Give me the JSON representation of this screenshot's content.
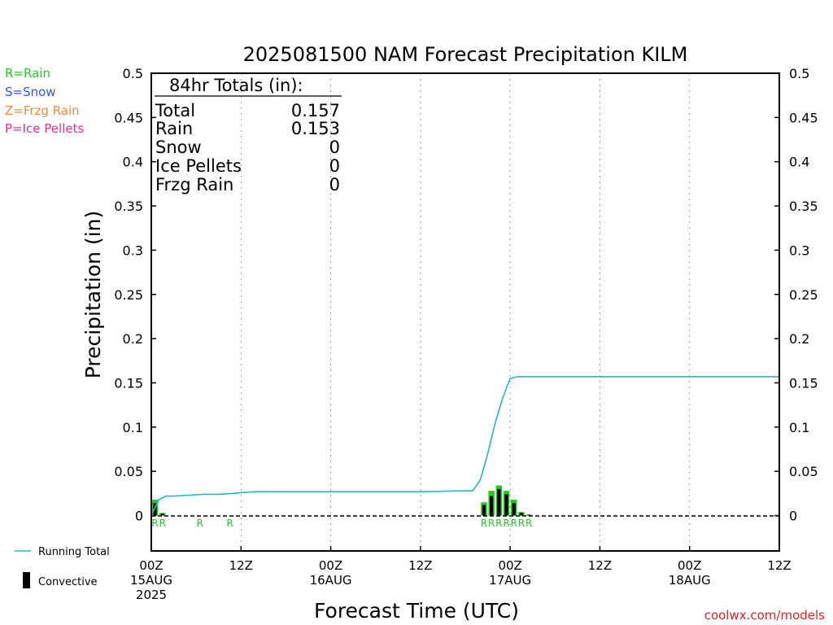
{
  "title": "2025081500 NAM Forecast Precipitation KILM",
  "legend_types": [
    {
      "label": "R=Rain",
      "color": "#22cc22"
    },
    {
      "label": "S=Snow",
      "color": "#3355ee"
    },
    {
      "label": "Z=Frzg Rain",
      "color": "#f08a3c"
    },
    {
      "label": "P=Ice Pellets",
      "color": "#e0309a"
    }
  ],
  "totals_box": {
    "header": "84hr Totals (in):",
    "rows": [
      {
        "label": "Total",
        "value": "0.157"
      },
      {
        "label": "Rain",
        "value": "0.153"
      },
      {
        "label": "Snow",
        "value": "0"
      },
      {
        "label": "Ice Pellets",
        "value": "0"
      },
      {
        "label": "Frzg Rain",
        "value": "0"
      }
    ]
  },
  "bottom_legend": {
    "running_total_label": "Running Total",
    "convective_label": "Convective"
  },
  "footer_credit": "coolwx.com/models",
  "colors": {
    "running_total": "#22bbbb",
    "convective": "#000000",
    "rain_bar": "#22cc22",
    "rain_letter": "#22cc22",
    "credit": "#dd2222",
    "grid": "#999999"
  },
  "chart_data": {
    "type": "bar",
    "title": "2025081500 NAM Forecast Precipitation KILM",
    "xlabel": "Forecast Time (UTC)",
    "ylabel": "Precipitation (in)",
    "ylim": [
      -0.04,
      0.5
    ],
    "xlim": [
      0,
      84
    ],
    "y_ticks": [
      0,
      0.05,
      0.1,
      0.15,
      0.2,
      0.25,
      0.3,
      0.35,
      0.4,
      0.45,
      0.5
    ],
    "y_tick_labels": [
      "0",
      "0.05",
      "0.1",
      "0.15",
      "0.2",
      "0.25",
      "0.3",
      "0.35",
      "0.4",
      "0.45",
      "0.5"
    ],
    "x_ticks": [
      {
        "hour": 0,
        "lines": [
          "00Z",
          "15AUG",
          "2025"
        ]
      },
      {
        "hour": 12,
        "lines": [
          "12Z"
        ]
      },
      {
        "hour": 24,
        "lines": [
          "00Z",
          "16AUG"
        ]
      },
      {
        "hour": 36,
        "lines": [
          "12Z"
        ]
      },
      {
        "hour": 48,
        "lines": [
          "00Z",
          "17AUG"
        ]
      },
      {
        "hour": 60,
        "lines": [
          "12Z"
        ]
      },
      {
        "hour": 72,
        "lines": [
          "00Z",
          "18AUG"
        ]
      },
      {
        "hour": 84,
        "lines": [
          "12Z"
        ]
      }
    ],
    "grid": true,
    "series": [
      {
        "name": "Rain",
        "type": "bar",
        "x": [
          1,
          2,
          45,
          46,
          47,
          48,
          49,
          50,
          51
        ],
        "values": [
          0.018,
          0.003,
          0.015,
          0.028,
          0.034,
          0.028,
          0.018,
          0.004,
          0.001
        ],
        "convective": [
          0.014,
          0.002,
          0.012,
          0.022,
          0.03,
          0.024,
          0.014,
          0.003,
          0.001
        ]
      },
      {
        "name": "Running Total",
        "type": "line",
        "x": [
          0,
          1,
          2,
          3,
          5,
          7,
          9,
          11,
          12,
          14,
          24,
          36,
          42,
          43,
          44,
          45,
          46,
          47,
          48,
          49,
          50,
          51,
          84
        ],
        "values": [
          0.0,
          0.018,
          0.022,
          0.022,
          0.023,
          0.024,
          0.024,
          0.025,
          0.026,
          0.027,
          0.027,
          0.027,
          0.028,
          0.028,
          0.04,
          0.07,
          0.105,
          0.133,
          0.155,
          0.157,
          0.157,
          0.157,
          0.157
        ]
      }
    ],
    "type_letters": [
      {
        "hour": 1,
        "letter": "R"
      },
      {
        "hour": 2,
        "letter": "R"
      },
      {
        "hour": 7,
        "letter": "R"
      },
      {
        "hour": 11,
        "letter": "R"
      },
      {
        "hour": 45,
        "letter": "R"
      },
      {
        "hour": 46,
        "letter": "R"
      },
      {
        "hour": 47,
        "letter": "R"
      },
      {
        "hour": 48,
        "letter": "R"
      },
      {
        "hour": 49,
        "letter": "R"
      },
      {
        "hour": 50,
        "letter": "R"
      },
      {
        "hour": 51,
        "letter": "R"
      }
    ]
  }
}
